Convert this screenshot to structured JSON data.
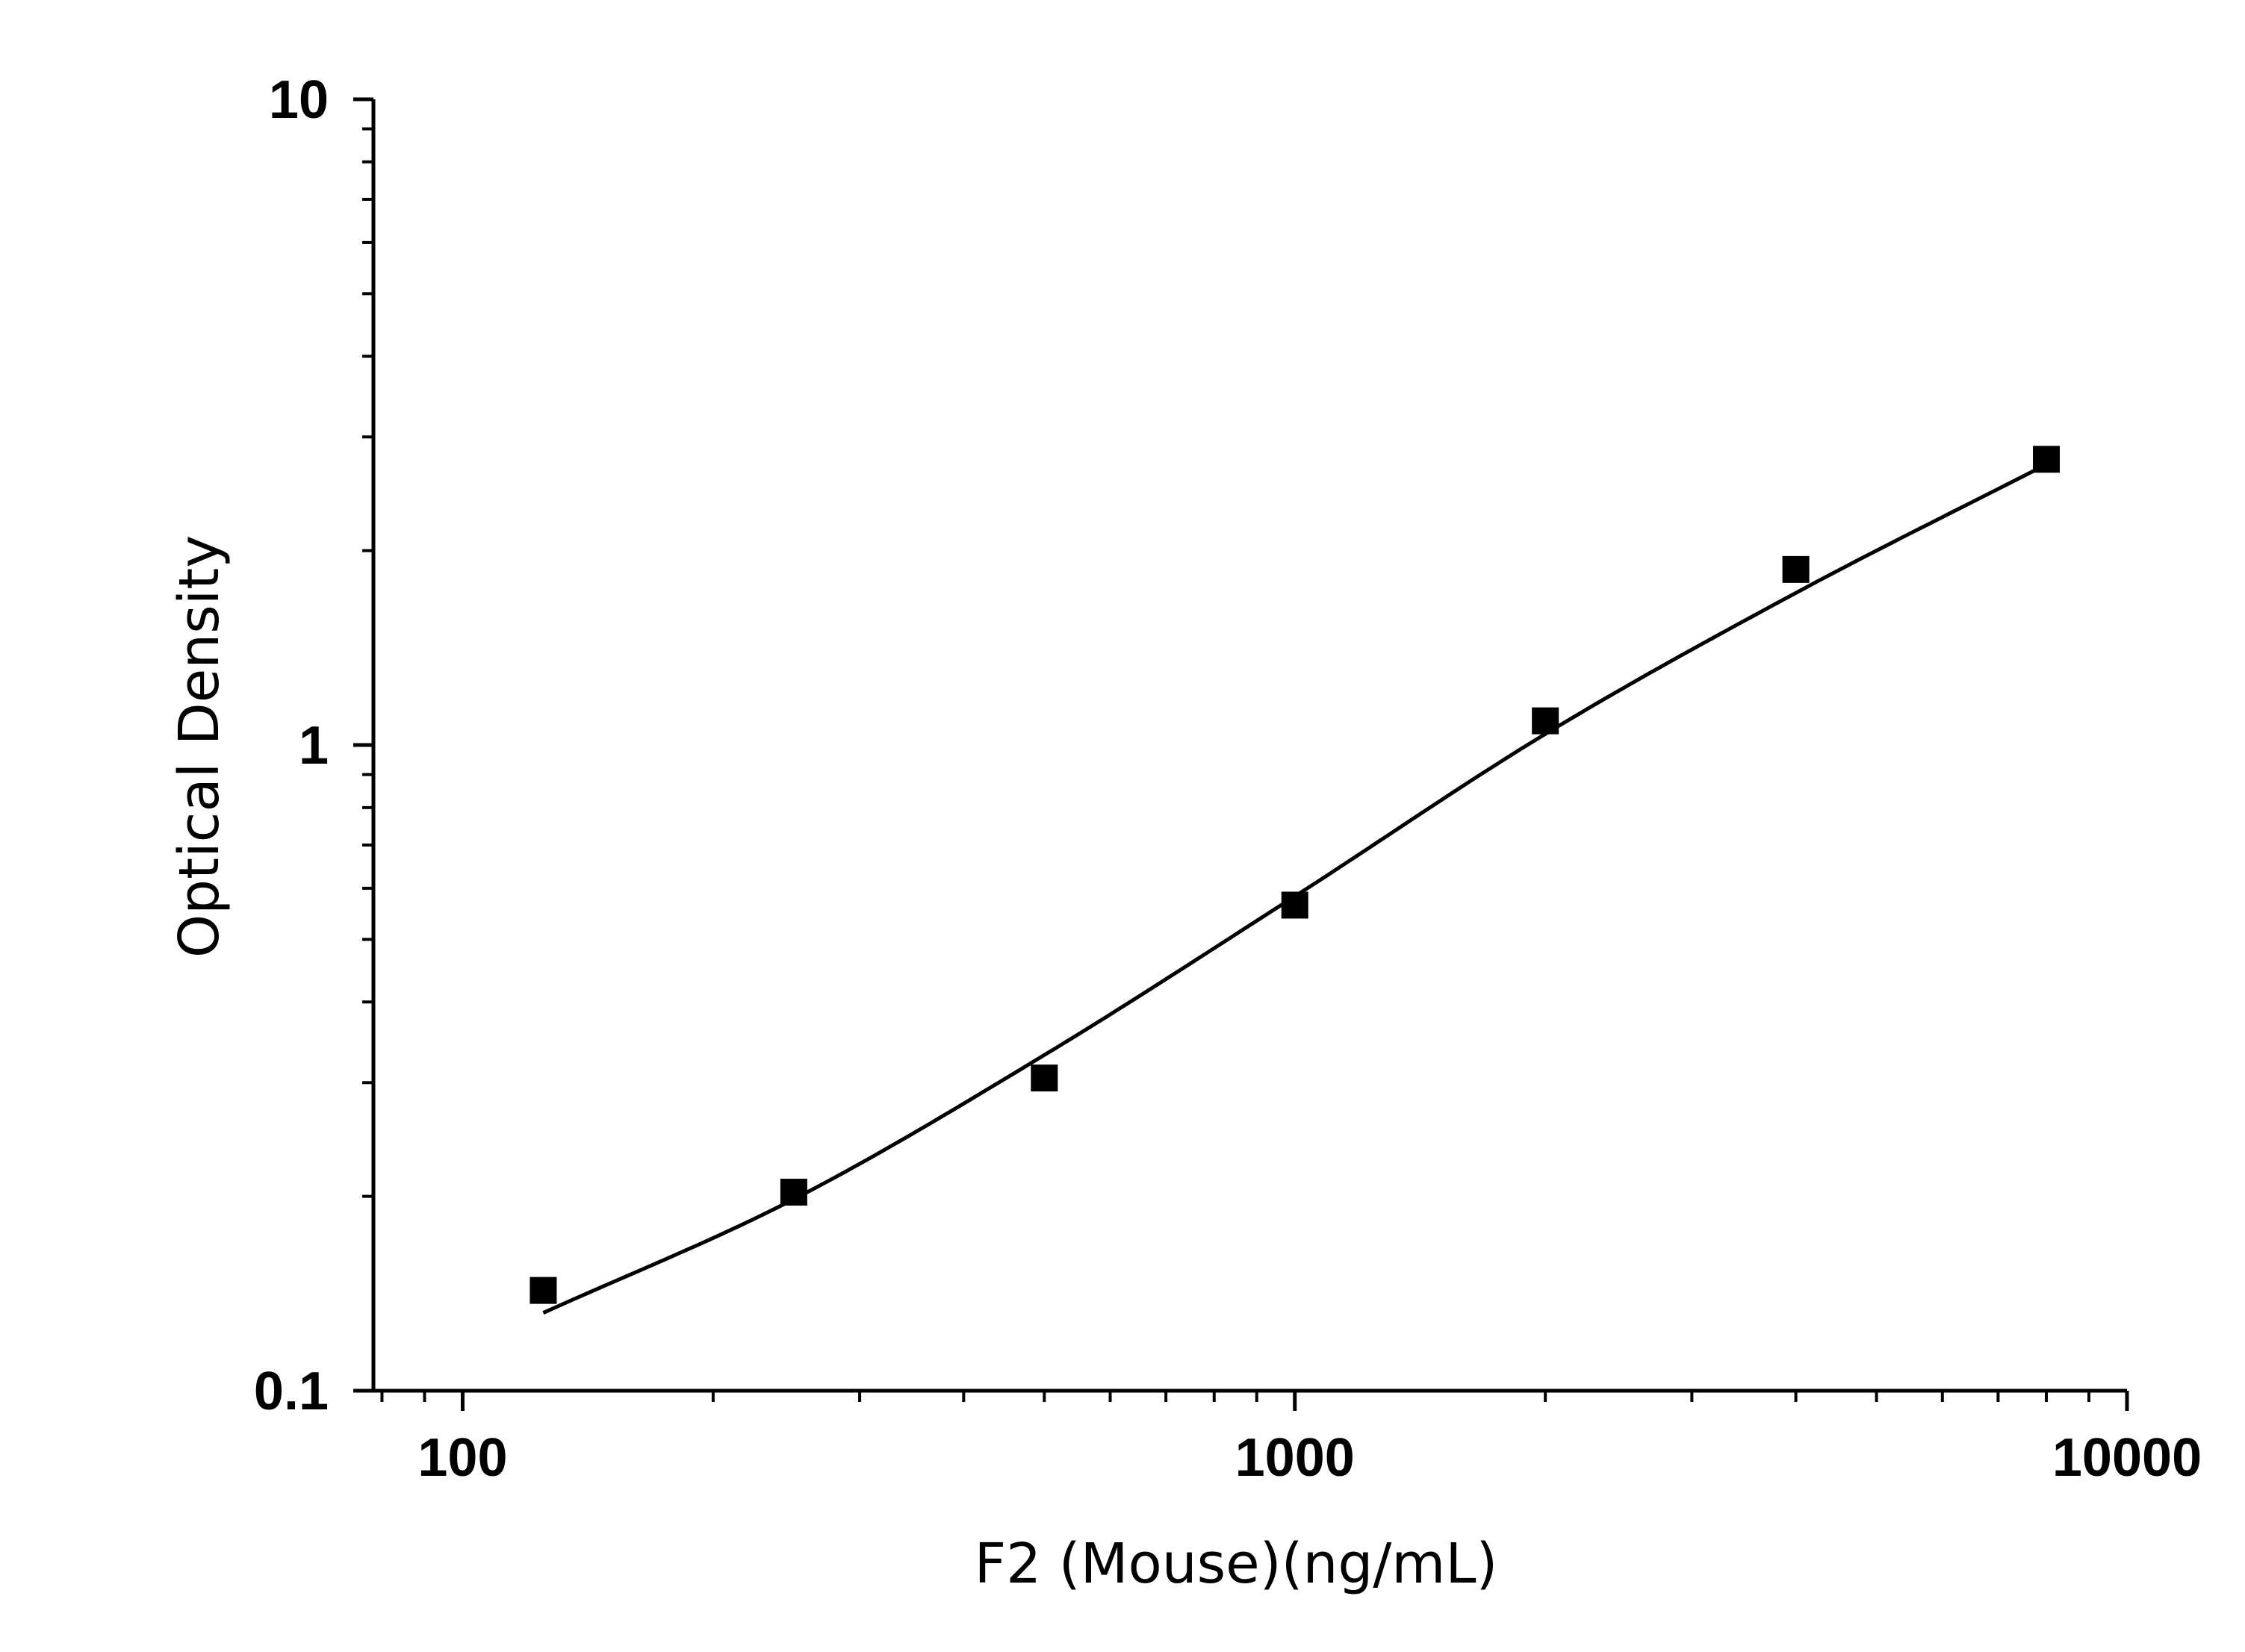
{
  "chart_data": {
    "type": "scatter",
    "title": "",
    "xlabel": "F2 (Mouse)(ng/mL)",
    "ylabel": "Optical Density",
    "x_scale": "log",
    "y_scale": "log",
    "xlim": [
      78.125,
      10000
    ],
    "ylim": [
      0.1,
      10
    ],
    "x_ticks": [
      100,
      1000,
      10000
    ],
    "x_tick_labels": [
      "100",
      "1000",
      "10000"
    ],
    "y_ticks": [
      0.1,
      1,
      10
    ],
    "y_tick_labels": [
      "0.1",
      "1",
      "10"
    ],
    "grid": false,
    "legend": "none",
    "marker": "square",
    "marker_color": "#000000",
    "line_color": "#000000",
    "series": [
      {
        "x": [
          125,
          250,
          500,
          1000,
          2000,
          4000,
          8000
        ],
        "y": [
          0.143,
          0.203,
          0.305,
          0.565,
          1.09,
          1.87,
          2.77
        ]
      }
    ],
    "fit_curve": {
      "x": [
        125,
        250,
        500,
        1000,
        2000,
        4000,
        8000
      ],
      "y": [
        0.132,
        0.198,
        0.331,
        0.583,
        1.04,
        1.72,
        2.72
      ]
    }
  }
}
